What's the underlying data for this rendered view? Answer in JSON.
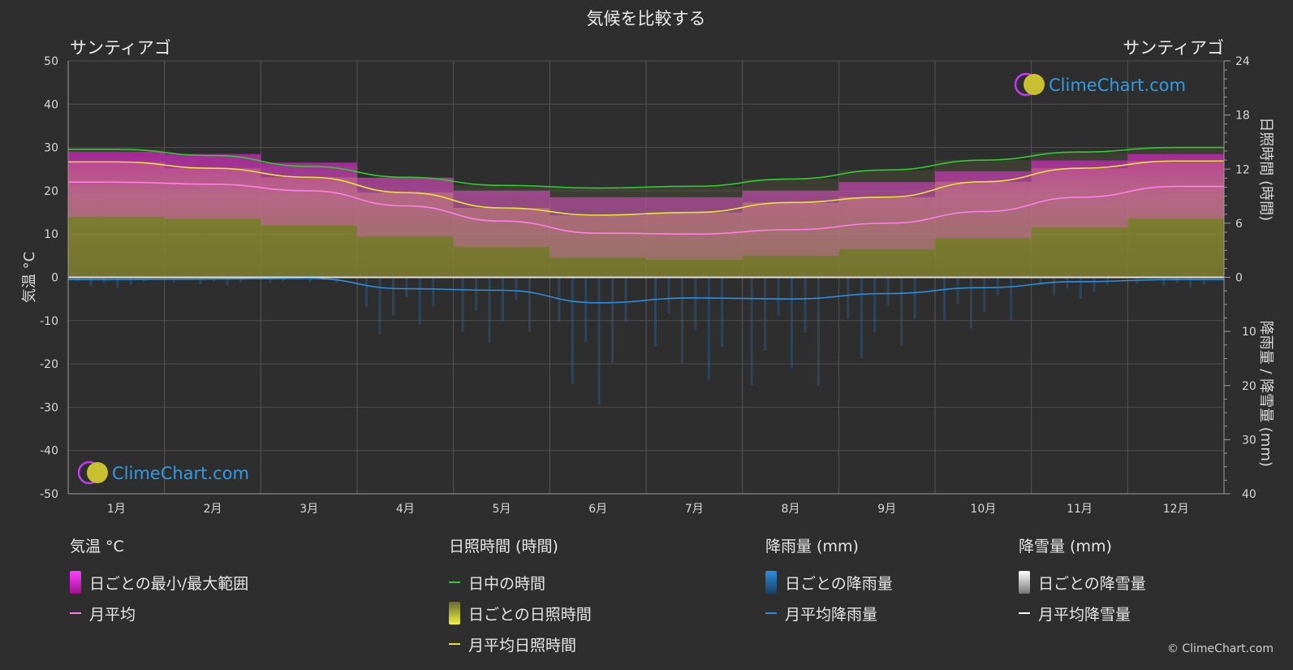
{
  "chart_data": {
    "type": "area",
    "title": "気候を比較する",
    "left_city": "サンティアゴ",
    "right_city": "サンティアゴ",
    "categories": [
      "1月",
      "2月",
      "3月",
      "4月",
      "5月",
      "6月",
      "7月",
      "8月",
      "9月",
      "10月",
      "11月",
      "12月"
    ],
    "y_left": {
      "label": "気温 °C",
      "range": [
        -50,
        50
      ],
      "ticks": [
        50,
        40,
        30,
        20,
        10,
        0,
        -10,
        -20,
        -30,
        -40,
        -50
      ]
    },
    "y_right_top": {
      "label": "日照時間 (時間)",
      "range": [
        0,
        24
      ],
      "ticks": [
        24,
        18,
        12,
        6,
        0
      ]
    },
    "y_right_bottom": {
      "label": "降雨量 / 降雪量 (mm)",
      "range": [
        0,
        40
      ],
      "ticks": [
        10,
        20,
        30,
        40
      ]
    },
    "grid": true,
    "series": [
      {
        "name": "日中の時間",
        "unit": "時間",
        "color": "#2ecc2e",
        "values": [
          14.2,
          13.5,
          12.3,
          11.1,
          10.2,
          9.9,
          10.1,
          10.9,
          11.9,
          13.0,
          13.9,
          14.4
        ]
      },
      {
        "name": "月平均日照時間",
        "unit": "時間",
        "color": "#e5e534",
        "values": [
          12.8,
          12.1,
          11.1,
          9.4,
          7.7,
          6.9,
          7.2,
          8.3,
          8.9,
          10.6,
          12.1,
          12.9
        ]
      },
      {
        "name": "月平均",
        "unit": "°C",
        "color": "#ff7fe6",
        "values": [
          22.0,
          21.5,
          20.0,
          16.5,
          13.0,
          10.2,
          10.0,
          11.0,
          12.5,
          15.2,
          18.5,
          21.0
        ]
      },
      {
        "name": "日ごとの最小/最大範囲_max",
        "unit": "°C",
        "values": [
          29.0,
          28.5,
          26.5,
          23.0,
          20.0,
          18.5,
          18.5,
          20.0,
          22.0,
          24.5,
          27.0,
          28.5
        ]
      },
      {
        "name": "日ごとの最小/最大範囲_min",
        "unit": "°C",
        "values": [
          14.0,
          13.5,
          12.0,
          9.5,
          7.0,
          4.5,
          4.0,
          5.0,
          6.5,
          9.0,
          11.5,
          13.5
        ]
      },
      {
        "name": "月平均降雨量",
        "unit": "mm",
        "color": "#2a8fe0",
        "values": [
          0.4,
          0.3,
          0.2,
          2.1,
          2.4,
          4.7,
          3.8,
          4.0,
          3.0,
          1.9,
          0.8,
          0.4
        ]
      },
      {
        "name": "月平均降雪量",
        "unit": "mm",
        "color": "#ffffff",
        "values": [
          0,
          0,
          0,
          0,
          0,
          0,
          0,
          0,
          0,
          0,
          0,
          0
        ]
      }
    ]
  },
  "watermark": "ClimeChart.com",
  "legend": {
    "temperature": {
      "title": "気温 °C",
      "items": [
        "日ごとの最小/最大範囲",
        "月平均"
      ]
    },
    "sunshine": {
      "title": "日照時間 (時間)",
      "items": [
        "日中の時間",
        "日ごとの日照時間",
        "月平均日照時間"
      ]
    },
    "rain": {
      "title": "降雨量 (mm)",
      "items": [
        "日ごとの降雨量",
        "月平均降雨量"
      ]
    },
    "snow": {
      "title": "降雪量 (mm)",
      "items": [
        "日ごとの降雪量",
        "月平均降雪量"
      ]
    }
  },
  "copyright": "© ClimeChart.com",
  "colors": {
    "background": "#2e2e2e",
    "daylight": "#2ecc2e",
    "sunshine": "#e5e534",
    "temp_avg": "#ff7fe6",
    "temp_range": "#d020c0",
    "rain": "#2a8fe0",
    "snow": "#ffffff"
  }
}
